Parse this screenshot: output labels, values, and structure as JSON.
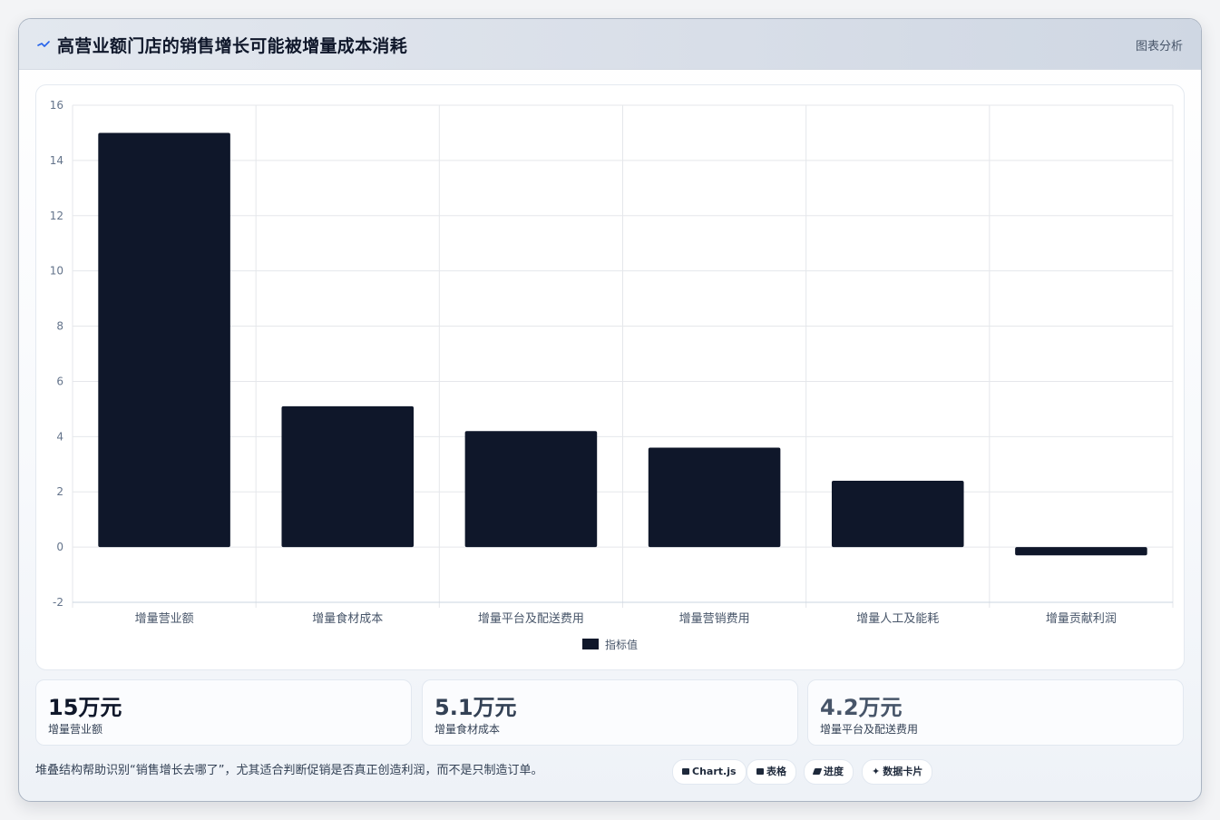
{
  "header": {
    "title": "高营业额门店的销售增长可能被增量成本消耗",
    "right_label": "图表分析"
  },
  "chart_data": {
    "type": "bar",
    "categories": [
      "增量营业额",
      "增量食材成本",
      "增量平台及配送费用",
      "增量营销费用",
      "增量人工及能耗",
      "增量贡献利润"
    ],
    "series": [
      {
        "name": "指标值",
        "values": [
          15,
          5.1,
          4.2,
          3.6,
          2.4,
          -0.3
        ]
      }
    ],
    "ylim": [
      -2,
      16
    ],
    "yticks": [
      -2,
      0,
      2,
      4,
      6,
      8,
      10,
      12,
      14,
      16
    ],
    "grid": true,
    "legend": "bottom",
    "bar_color": "#0f172a"
  },
  "stats": [
    {
      "value": "15万元",
      "label": "增量营业额",
      "color": "#0f172a"
    },
    {
      "value": "5.1万元",
      "label": "增量食材成本",
      "color": "#334155"
    },
    {
      "value": "4.2万元",
      "label": "增量平台及配送费用",
      "color": "#475569"
    }
  ],
  "footnote": "堆叠结构帮助识别“销售增长去哪了”，尤其适合判断促销是否真正创造利润，而不是只制造订单。",
  "pills": [
    {
      "label": "Chart.js",
      "icon": "chart-icon"
    },
    {
      "label": "表格",
      "icon": "table-icon"
    },
    {
      "label": "进度",
      "icon": "progress-icon"
    },
    {
      "label": "数据卡片",
      "icon": "card-icon"
    }
  ]
}
